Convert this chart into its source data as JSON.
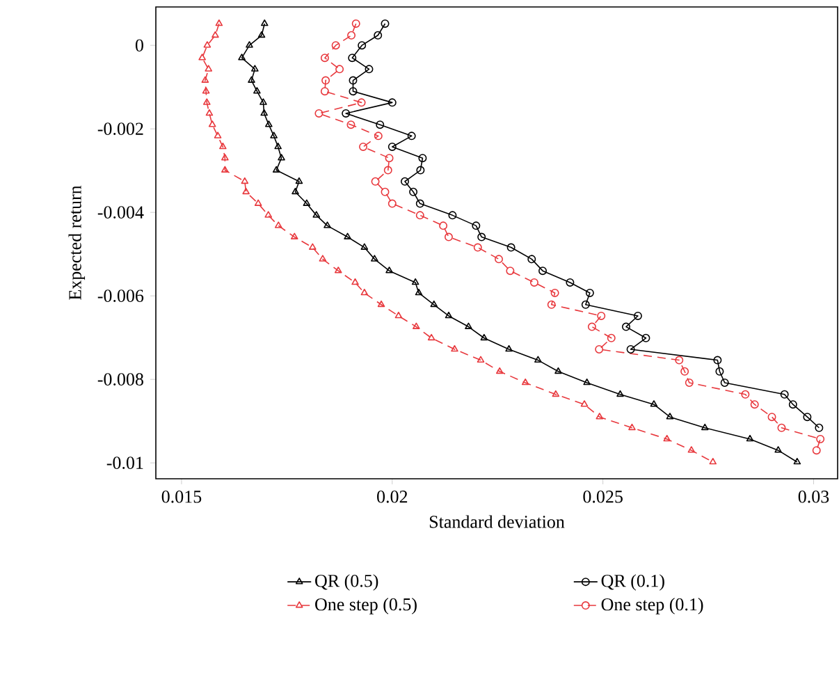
{
  "chart_data": {
    "type": "line",
    "xlabel": "Standard deviation",
    "ylabel": "Expected return",
    "xlim": [
      0.01439,
      0.03057
    ],
    "ylim": [
      -0.01038,
      0.00092
    ],
    "xticks": [
      0.015,
      0.02,
      0.025,
      0.03
    ],
    "yticks": [
      0,
      -0.002,
      -0.004,
      -0.006,
      -0.008,
      -0.01
    ],
    "grid": false,
    "legend": "bottom",
    "series": [
      {
        "name": "QR (0.5)",
        "color": "#000000",
        "marker": "triangle",
        "line_style": "solid",
        "x": [
          0.01697,
          0.0169,
          0.01661,
          0.01643,
          0.01674,
          0.01666,
          0.01679,
          0.01694,
          0.01696,
          0.01707,
          0.01719,
          0.01729,
          0.01737,
          0.01725,
          0.01779,
          0.0177,
          0.01797,
          0.0182,
          0.01846,
          0.01894,
          0.01934,
          0.01958,
          0.01993,
          0.02055,
          0.02063,
          0.02099,
          0.02134,
          0.02181,
          0.02218,
          0.02277,
          0.02346,
          0.02394,
          0.02462,
          0.02541,
          0.02621,
          0.02659,
          0.02742,
          0.02849,
          0.02916,
          0.02961
        ],
        "values": [
          0.00052,
          0.00024,
          0,
          -0.0003,
          -0.00057,
          -0.00084,
          -0.0011,
          -0.00137,
          -0.00163,
          -0.0019,
          -0.00217,
          -0.00243,
          -0.0027,
          -0.00299,
          -0.00326,
          -0.00351,
          -0.00379,
          -0.00407,
          -0.00432,
          -0.00459,
          -0.00484,
          -0.00512,
          -0.0054,
          -0.00568,
          -0.00593,
          -0.00621,
          -0.00648,
          -0.00674,
          -0.00701,
          -0.00728,
          -0.00754,
          -0.00781,
          -0.00808,
          -0.00836,
          -0.0086,
          -0.0089,
          -0.00916,
          -0.00943,
          -0.0097,
          -0.00998
        ]
      },
      {
        "name": "QR (0.1)",
        "color": "#000000",
        "marker": "circle",
        "line_style": "solid",
        "x": [
          0.01983,
          0.01966,
          0.01928,
          0.01905,
          0.01945,
          0.01907,
          0.01907,
          0.02,
          0.0189,
          0.01971,
          0.02046,
          0.02,
          0.02072,
          0.02067,
          0.0203,
          0.0205,
          0.02066,
          0.02143,
          0.02199,
          0.02212,
          0.02282,
          0.02331,
          0.02357,
          0.02422,
          0.02469,
          0.02459,
          0.02583,
          0.02555,
          0.02602,
          0.02566,
          0.02772,
          0.02777,
          0.02789,
          0.02931,
          0.02951,
          0.02985,
          0.03013
        ],
        "values": [
          0.00052,
          0.00024,
          0,
          -0.0003,
          -0.00057,
          -0.00084,
          -0.0011,
          -0.00137,
          -0.00163,
          -0.0019,
          -0.00217,
          -0.00243,
          -0.0027,
          -0.00299,
          -0.00326,
          -0.00351,
          -0.00379,
          -0.00407,
          -0.00432,
          -0.00459,
          -0.00484,
          -0.00512,
          -0.0054,
          -0.00568,
          -0.00593,
          -0.00621,
          -0.00648,
          -0.00674,
          -0.00701,
          -0.00728,
          -0.00754,
          -0.00781,
          -0.00808,
          -0.00836,
          -0.0086,
          -0.0089,
          -0.00916
        ]
      },
      {
        "name": "One step (0.5)",
        "color": "#e8383d",
        "marker": "triangle",
        "line_style": "dashed",
        "x": [
          0.01589,
          0.0158,
          0.01561,
          0.01549,
          0.01564,
          0.01556,
          0.01558,
          0.0156,
          0.01566,
          0.01573,
          0.01586,
          0.01598,
          0.01603,
          0.01603,
          0.0165,
          0.01653,
          0.01682,
          0.01706,
          0.0173,
          0.01768,
          0.01811,
          0.01835,
          0.01872,
          0.01912,
          0.01934,
          0.01974,
          0.02015,
          0.02057,
          0.02093,
          0.02148,
          0.0221,
          0.02255,
          0.02316,
          0.02388,
          0.02456,
          0.02492,
          0.02569,
          0.02652,
          0.0271,
          0.02761
        ],
        "values": [
          0.00052,
          0.00024,
          0,
          -0.0003,
          -0.00057,
          -0.00084,
          -0.0011,
          -0.00137,
          -0.00163,
          -0.0019,
          -0.00217,
          -0.00243,
          -0.0027,
          -0.00299,
          -0.00326,
          -0.00351,
          -0.00379,
          -0.00407,
          -0.00432,
          -0.00459,
          -0.00484,
          -0.00512,
          -0.0054,
          -0.00568,
          -0.00593,
          -0.00621,
          -0.00648,
          -0.00674,
          -0.00701,
          -0.00728,
          -0.00754,
          -0.00781,
          -0.00808,
          -0.00836,
          -0.0086,
          -0.0089,
          -0.00916,
          -0.00943,
          -0.0097,
          -0.00998
        ]
      },
      {
        "name": "One step (0.1)",
        "color": "#e8383d",
        "marker": "circle",
        "line_style": "dashed",
        "x": [
          0.01914,
          0.01903,
          0.01866,
          0.0184,
          0.01875,
          0.01842,
          0.0184,
          0.01927,
          0.01826,
          0.01902,
          0.01967,
          0.01931,
          0.01993,
          0.0199,
          0.0196,
          0.01983,
          0.02,
          0.02066,
          0.02121,
          0.02134,
          0.02203,
          0.02253,
          0.0228,
          0.02337,
          0.02386,
          0.02378,
          0.02496,
          0.02474,
          0.0252,
          0.02491,
          0.02681,
          0.02694,
          0.02705,
          0.02838,
          0.0286,
          0.02901,
          0.02924,
          0.03016,
          0.03007
        ],
        "values": [
          0.00052,
          0.00024,
          0,
          -0.0003,
          -0.00057,
          -0.00084,
          -0.0011,
          -0.00137,
          -0.00163,
          -0.0019,
          -0.00217,
          -0.00243,
          -0.0027,
          -0.00299,
          -0.00326,
          -0.00351,
          -0.00379,
          -0.00407,
          -0.00432,
          -0.00459,
          -0.00484,
          -0.00512,
          -0.0054,
          -0.00568,
          -0.00593,
          -0.00621,
          -0.00648,
          -0.00674,
          -0.00701,
          -0.00728,
          -0.00754,
          -0.00781,
          -0.00808,
          -0.00836,
          -0.0086,
          -0.0089,
          -0.00916,
          -0.00943,
          -0.0097
        ]
      }
    ]
  }
}
